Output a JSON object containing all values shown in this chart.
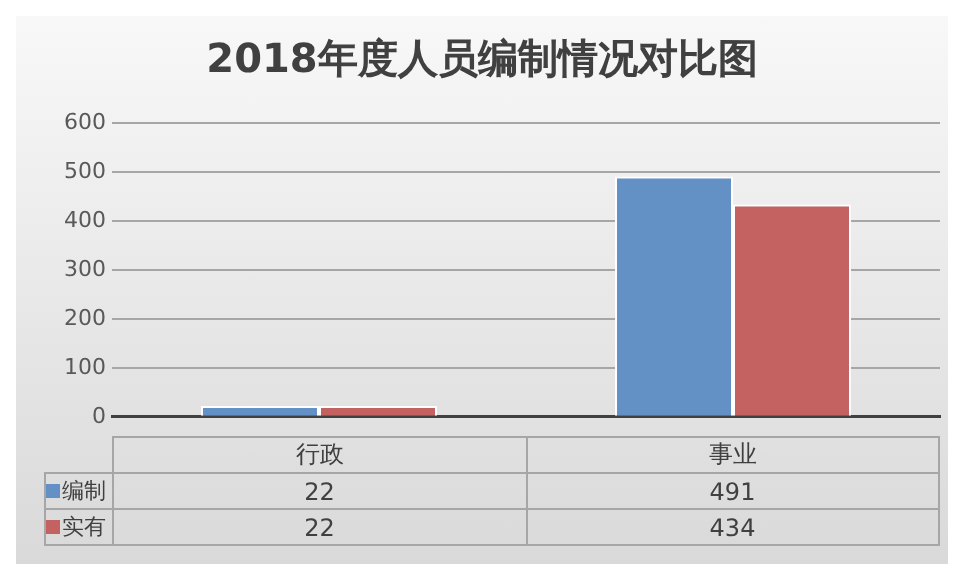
{
  "chart_data": {
    "type": "bar",
    "title": "2018年度人员编制情况对比图",
    "categories": [
      "行政",
      "事业"
    ],
    "series": [
      {
        "name": "编制",
        "color": "#6391c6",
        "values": [
          22,
          491
        ]
      },
      {
        "name": "实有",
        "color": "#c46262",
        "values": [
          22,
          434
        ]
      }
    ],
    "ylim": [
      0,
      600
    ],
    "yticks": [
      0,
      100,
      200,
      300,
      400,
      500,
      600
    ],
    "grid": "y",
    "legend": "bottom",
    "data_labels": true
  }
}
